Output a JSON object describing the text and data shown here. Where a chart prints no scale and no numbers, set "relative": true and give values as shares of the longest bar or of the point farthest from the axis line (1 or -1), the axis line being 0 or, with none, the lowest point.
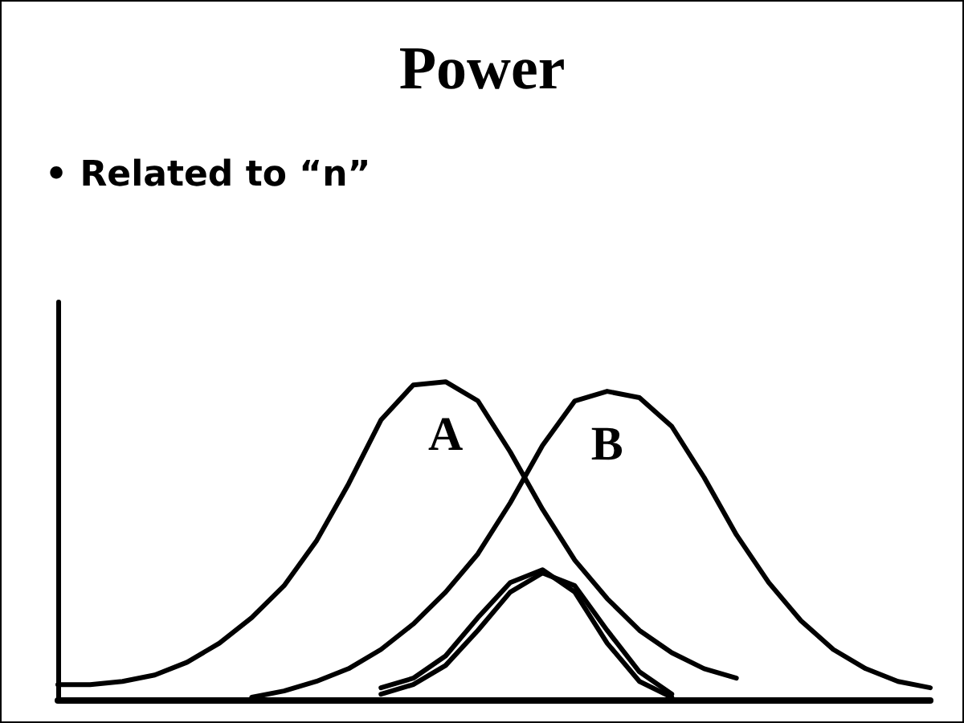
{
  "chart_data": {
    "type": "line",
    "title": "Power",
    "subtitle": "• Related to “n”",
    "relative": true,
    "grid": false,
    "legend": false,
    "marker": "none",
    "line_style": "solid",
    "categories": [
      null,
      null,
      null,
      null,
      null,
      null,
      null,
      null,
      null,
      null,
      null,
      null,
      null,
      null,
      null,
      null,
      null,
      null,
      null,
      null,
      null,
      null,
      null,
      null,
      null,
      null,
      null,
      null
    ],
    "series": [
      {
        "name": "A",
        "color": "#000000",
        "values": [
          0.05,
          0.05,
          0.06,
          0.08,
          0.12,
          0.18,
          0.26,
          0.36,
          0.5,
          0.68,
          0.88,
          0.99,
          1.0,
          0.94,
          0.78,
          0.6,
          0.44,
          0.32,
          0.22,
          0.15,
          0.1,
          0.07,
          null,
          null,
          null,
          null,
          null,
          null
        ]
      },
      {
        "name": "B",
        "color": "#000000",
        "values": [
          null,
          null,
          null,
          null,
          null,
          null,
          0.01,
          0.03,
          0.06,
          0.1,
          0.16,
          0.24,
          0.34,
          0.46,
          0.62,
          0.8,
          0.94,
          0.97,
          0.95,
          0.86,
          0.7,
          0.52,
          0.37,
          0.25,
          0.16,
          0.1,
          0.06,
          0.04
        ]
      },
      {
        "color": "#000000",
        "values": [
          null,
          null,
          null,
          null,
          null,
          null,
          null,
          null,
          null,
          null,
          0.04,
          0.07,
          0.14,
          0.26,
          0.37,
          0.41,
          0.34,
          0.18,
          0.06,
          0.01,
          null,
          null,
          null,
          null,
          null,
          null,
          null,
          null
        ]
      },
      {
        "color": "#000000",
        "values": [
          null,
          null,
          null,
          null,
          null,
          null,
          null,
          null,
          null,
          null,
          0.02,
          0.05,
          0.11,
          0.22,
          0.34,
          0.4,
          0.36,
          0.22,
          0.09,
          0.02,
          null,
          null,
          null,
          null,
          null,
          null,
          null,
          null
        ]
      }
    ]
  }
}
